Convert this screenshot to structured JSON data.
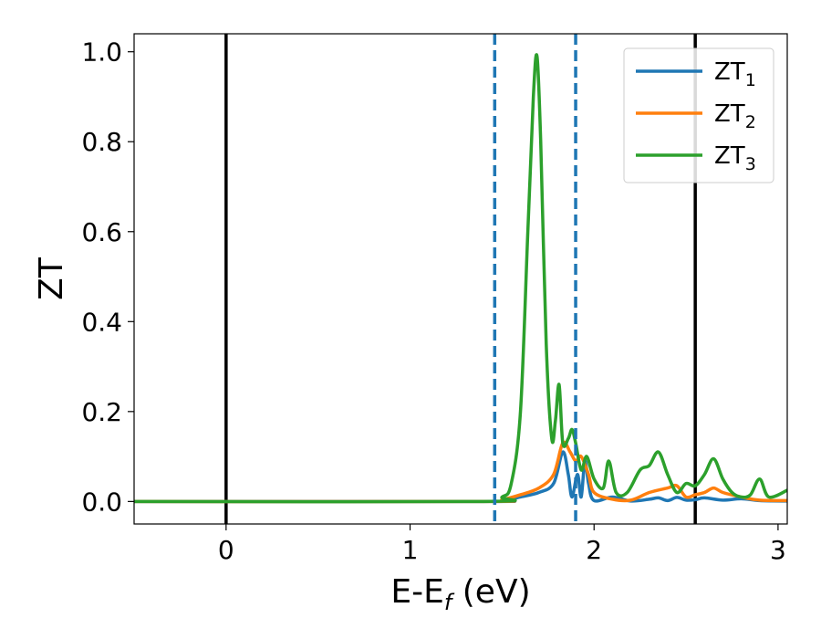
{
  "chart_data": {
    "type": "line",
    "xlabel": "E-E",
    "xlabel_subscript": "f",
    "xlabel_suffix": " (eV)",
    "ylabel": "ZT",
    "xlim": [
      -0.5,
      3.05
    ],
    "ylim": [
      -0.05,
      1.04
    ],
    "xticks": [
      0,
      1,
      2,
      3
    ],
    "yticks": [
      0.0,
      0.2,
      0.4,
      0.6,
      0.8,
      1.0
    ],
    "ytick_labels": [
      "0.0",
      "0.2",
      "0.4",
      "0.6",
      "0.8",
      "1.0"
    ],
    "grid": false,
    "legend_position": "top-right",
    "vlines": [
      {
        "x": 0.0,
        "style": "solid",
        "color": "#000000"
      },
      {
        "x": 2.55,
        "style": "solid",
        "color": "#000000"
      },
      {
        "x": 1.46,
        "style": "dashed",
        "color": "#1f77b4"
      },
      {
        "x": 1.9,
        "style": "dashed",
        "color": "#1f77b4"
      }
    ],
    "series": [
      {
        "name": "ZT",
        "subscript": "1",
        "color": "#1f77b4",
        "x": [
          -0.5,
          1.4,
          1.5,
          1.6,
          1.7,
          1.78,
          1.83,
          1.86,
          1.88,
          1.91,
          1.93,
          1.95,
          1.97,
          2.0,
          2.1,
          2.2,
          2.3,
          2.35,
          2.4,
          2.45,
          2.5,
          2.55,
          2.6,
          2.7,
          2.8,
          2.9,
          3.05
        ],
        "y": [
          0.0,
          0.0,
          0.002,
          0.01,
          0.02,
          0.04,
          0.11,
          0.06,
          0.01,
          0.06,
          0.01,
          0.09,
          0.04,
          0.002,
          0.01,
          0.001,
          0.005,
          0.008,
          0.002,
          0.009,
          0.003,
          0.004,
          0.008,
          0.003,
          0.006,
          0.002,
          0.001
        ]
      },
      {
        "name": "ZT",
        "subscript": "2",
        "color": "#ff7f0e",
        "x": [
          -0.5,
          1.4,
          1.5,
          1.6,
          1.7,
          1.78,
          1.83,
          1.87,
          1.9,
          1.93,
          1.97,
          2.0,
          2.1,
          2.2,
          2.3,
          2.4,
          2.45,
          2.5,
          2.55,
          2.6,
          2.65,
          2.7,
          2.8,
          2.9,
          3.05
        ],
        "y": [
          0.0,
          0.0,
          0.004,
          0.015,
          0.03,
          0.06,
          0.13,
          0.11,
          0.09,
          0.1,
          0.06,
          0.02,
          0.005,
          0.003,
          0.02,
          0.03,
          0.035,
          0.01,
          0.015,
          0.02,
          0.03,
          0.02,
          0.01,
          0.003,
          0.002
        ]
      },
      {
        "name": "ZT",
        "subscript": "3",
        "color": "#2ca02c",
        "x": [
          -0.5,
          1.4,
          1.5,
          1.55,
          1.6,
          1.64,
          1.67,
          1.69,
          1.71,
          1.74,
          1.77,
          1.79,
          1.81,
          1.83,
          1.86,
          1.88,
          1.9,
          1.93,
          1.96,
          2.0,
          2.05,
          2.08,
          2.12,
          2.18,
          2.25,
          2.3,
          2.35,
          2.4,
          2.45,
          2.5,
          2.55,
          2.6,
          2.65,
          2.7,
          2.75,
          2.8,
          2.85,
          2.9,
          2.95,
          3.05
        ],
        "y": [
          0.0,
          0.0,
          0.01,
          0.04,
          0.2,
          0.6,
          0.9,
          0.99,
          0.8,
          0.35,
          0.14,
          0.18,
          0.26,
          0.13,
          0.14,
          0.16,
          0.13,
          0.07,
          0.1,
          0.05,
          0.03,
          0.09,
          0.02,
          0.02,
          0.07,
          0.08,
          0.11,
          0.06,
          0.02,
          0.04,
          0.035,
          0.06,
          0.095,
          0.05,
          0.02,
          0.01,
          0.015,
          0.05,
          0.01,
          0.025
        ]
      }
    ]
  }
}
